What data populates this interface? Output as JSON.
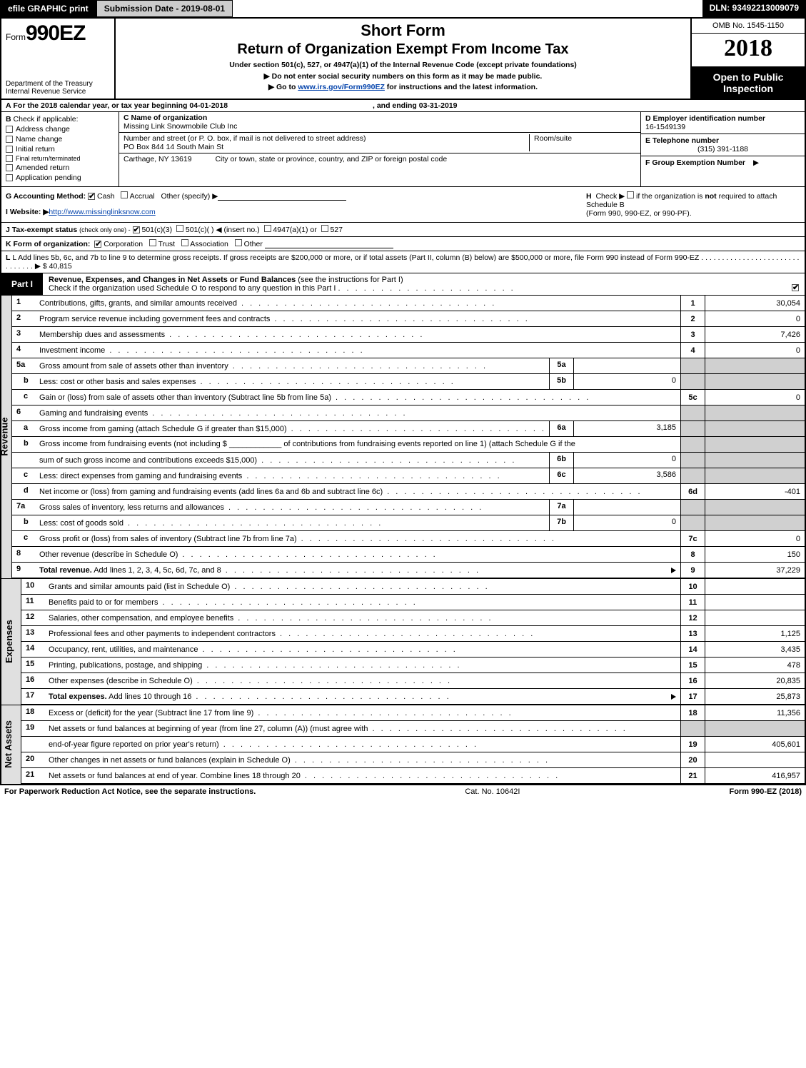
{
  "topbar": {
    "efile": "efile GRAPHIC print",
    "submission": "Submission Date - 2019-08-01",
    "dln": "DLN: 93492213009079"
  },
  "header": {
    "form_prefix": "Form",
    "form_number": "990EZ",
    "dept1": "Department of the Treasury",
    "dept2": "Internal Revenue Service",
    "short_form": "Short Form",
    "return_title": "Return of Organization Exempt From Income Tax",
    "subtitle": "Under section 501(c), 527, or 4947(a)(1) of the Internal Revenue Code (except private foundations)",
    "instruct1_pre": "▶ Do not enter social security numbers on this form as it may be made public.",
    "instruct2_pre": "▶ Go to ",
    "instruct2_link": "www.irs.gov/Form990EZ",
    "instruct2_post": " for instructions and the latest information.",
    "omb": "OMB No. 1545-1150",
    "year": "2018",
    "open1": "Open to Public",
    "open2": "Inspection"
  },
  "rowA": {
    "label": "A",
    "text1": "For the 2018 calendar year, or tax year beginning 04-01-2018",
    "text2": ", and ending 03-31-2019"
  },
  "colB": {
    "label": "B",
    "check_label": "Check if applicable:",
    "opt1": "Address change",
    "opt2": "Name change",
    "opt3": "Initial return",
    "opt4": "Final return/terminated",
    "opt5": "Amended return",
    "opt6": "Application pending"
  },
  "colC": {
    "name_label": "C Name of organization",
    "name_val": "Missing Link Snowmobile Club Inc",
    "addr_label": "Number and street (or P. O. box, if mail is not delivered to street address)",
    "addr_val": "PO Box 844 14 South Main St",
    "room_label": "Room/suite",
    "city_label": "City or town, state or province, country, and ZIP or foreign postal code",
    "city_val": "Carthage, NY  13619"
  },
  "colDEF": {
    "d_label": "D Employer identification number",
    "d_val": "16-1549139",
    "e_label": "E Telephone number",
    "e_val": "(315) 391-1188",
    "f_label": "F Group Exemption Number",
    "f_arrow": "▶"
  },
  "rowGH": {
    "g_label": "G Accounting Method:",
    "g_cash": "Cash",
    "g_accrual": "Accrual",
    "g_other": "Other (specify) ▶",
    "i_label": "I Website: ▶",
    "i_val": "http://www.missinglinksnow.com",
    "h_label": "H",
    "h_text1": "Check ▶",
    "h_text2": "if the organization is ",
    "h_not": "not",
    "h_text3": " required to attach Schedule B",
    "h_text4": "(Form 990, 990-EZ, or 990-PF)."
  },
  "rowJ": {
    "label": "J Tax-exempt status",
    "sub": "(check only one) -",
    "o1": "501(c)(3)",
    "o2": "501(c)(   )",
    "insert": "◀ (insert no.)",
    "o3": "4947(a)(1) or",
    "o4": "527"
  },
  "rowK": {
    "label": "K Form of organization:",
    "o1": "Corporation",
    "o2": "Trust",
    "o3": "Association",
    "o4": "Other"
  },
  "rowL": {
    "text": "L Add lines 5b, 6c, and 7b to line 9 to determine gross receipts. If gross receipts are $200,000 or more, or if total assets (Part II, column (B) below) are $500,000 or more, file Form 990 instead of Form 990-EZ",
    "dots": ". . . . . . . . . . . . . . . . . . . . . . . . . . . . . . . ▶",
    "amount": "$ 40,815"
  },
  "part1": {
    "label": "Part I",
    "title": "Revenue, Expenses, and Changes in Net Assets or Fund Balances",
    "title_sub": " (see the instructions for Part I)",
    "check_text": "Check if the organization used Schedule O to respond to any question in this Part I"
  },
  "sides": {
    "revenue": "Revenue",
    "expenses": "Expenses",
    "netassets": "Net Assets"
  },
  "lines": [
    {
      "n": "1",
      "d": "Contributions, gifts, grants, and similar amounts received",
      "rn": "1",
      "rv": "30,054"
    },
    {
      "n": "2",
      "d": "Program service revenue including government fees and contracts",
      "rn": "2",
      "rv": "0"
    },
    {
      "n": "3",
      "d": "Membership dues and assessments",
      "rn": "3",
      "rv": "7,426"
    },
    {
      "n": "4",
      "d": "Investment income",
      "rn": "4",
      "rv": "0"
    },
    {
      "n": "5a",
      "d": "Gross amount from sale of assets other than inventory",
      "mn": "5a",
      "mv": "",
      "shade": true
    },
    {
      "n": "b",
      "sub": true,
      "d": "Less: cost or other basis and sales expenses",
      "mn": "5b",
      "mv": "0",
      "shade": true
    },
    {
      "n": "c",
      "sub": true,
      "d": "Gain or (loss) from sale of assets other than inventory (Subtract line 5b from line 5a)",
      "rn": "5c",
      "rv": "0"
    },
    {
      "n": "6",
      "d": "Gaming and fundraising events",
      "shade": true,
      "noright": true
    },
    {
      "n": "a",
      "sub": true,
      "d": "Gross income from gaming (attach Schedule G if greater than $15,000)",
      "mn": "6a",
      "mv": "3,185",
      "shade": true
    },
    {
      "n": "b",
      "sub": true,
      "d": "Gross income from fundraising events (not including $ ____________ of contributions from fundraising events reported on line 1) (attach Schedule G if the",
      "shade": true,
      "noright": true,
      "wrap": true
    },
    {
      "n": "",
      "sub": true,
      "d": "sum of such gross income and contributions exceeds $15,000)",
      "mn": "6b",
      "mv": "0",
      "shade": true
    },
    {
      "n": "c",
      "sub": true,
      "d": "Less: direct expenses from gaming and fundraising events",
      "mn": "6c",
      "mv": "3,586",
      "shade": true
    },
    {
      "n": "d",
      "sub": true,
      "d": "Net income or (loss) from gaming and fundraising events (add lines 6a and 6b and subtract line 6c)",
      "rn": "6d",
      "rv": "-401"
    },
    {
      "n": "7a",
      "d": "Gross sales of inventory, less returns and allowances",
      "mn": "7a",
      "mv": "",
      "shade": true
    },
    {
      "n": "b",
      "sub": true,
      "d": "Less: cost of goods sold",
      "mn": "7b",
      "mv": "0",
      "shade": true
    },
    {
      "n": "c",
      "sub": true,
      "d": "Gross profit or (loss) from sales of inventory (Subtract line 7b from line 7a)",
      "rn": "7c",
      "rv": "0"
    },
    {
      "n": "8",
      "d": "Other revenue (describe in Schedule O)",
      "rn": "8",
      "rv": "150"
    },
    {
      "n": "9",
      "d": "Total revenue. Add lines 1, 2, 3, 4, 5c, 6d, 7c, and 8",
      "rn": "9",
      "rv": "37,229",
      "bold": true,
      "arrow": true
    }
  ],
  "exp_lines": [
    {
      "n": "10",
      "d": "Grants and similar amounts paid (list in Schedule O)",
      "rn": "10",
      "rv": ""
    },
    {
      "n": "11",
      "d": "Benefits paid to or for members",
      "rn": "11",
      "rv": ""
    },
    {
      "n": "12",
      "d": "Salaries, other compensation, and employee benefits",
      "rn": "12",
      "rv": ""
    },
    {
      "n": "13",
      "d": "Professional fees and other payments to independent contractors",
      "rn": "13",
      "rv": "1,125"
    },
    {
      "n": "14",
      "d": "Occupancy, rent, utilities, and maintenance",
      "rn": "14",
      "rv": "3,435"
    },
    {
      "n": "15",
      "d": "Printing, publications, postage, and shipping",
      "rn": "15",
      "rv": "478"
    },
    {
      "n": "16",
      "d": "Other expenses (describe in Schedule O)",
      "rn": "16",
      "rv": "20,835"
    },
    {
      "n": "17",
      "d": "Total expenses. Add lines 10 through 16",
      "rn": "17",
      "rv": "25,873",
      "bold": true,
      "arrow": true
    }
  ],
  "na_lines": [
    {
      "n": "18",
      "d": "Excess or (deficit) for the year (Subtract line 17 from line 9)",
      "rn": "18",
      "rv": "11,356"
    },
    {
      "n": "19",
      "d": "Net assets or fund balances at beginning of year (from line 27, column (A)) (must agree with",
      "noright": true,
      "shade": true
    },
    {
      "n": "",
      "d": "end-of-year figure reported on prior year's return)",
      "rn": "19",
      "rv": "405,601"
    },
    {
      "n": "20",
      "d": "Other changes in net assets or fund balances (explain in Schedule O)",
      "rn": "20",
      "rv": ""
    },
    {
      "n": "21",
      "d": "Net assets or fund balances at end of year. Combine lines 18 through 20",
      "rn": "21",
      "rv": "416,957"
    }
  ],
  "footer": {
    "left": "For Paperwork Reduction Act Notice, see the separate instructions.",
    "mid": "Cat. No. 10642I",
    "right": "Form 990-EZ (2018)"
  }
}
